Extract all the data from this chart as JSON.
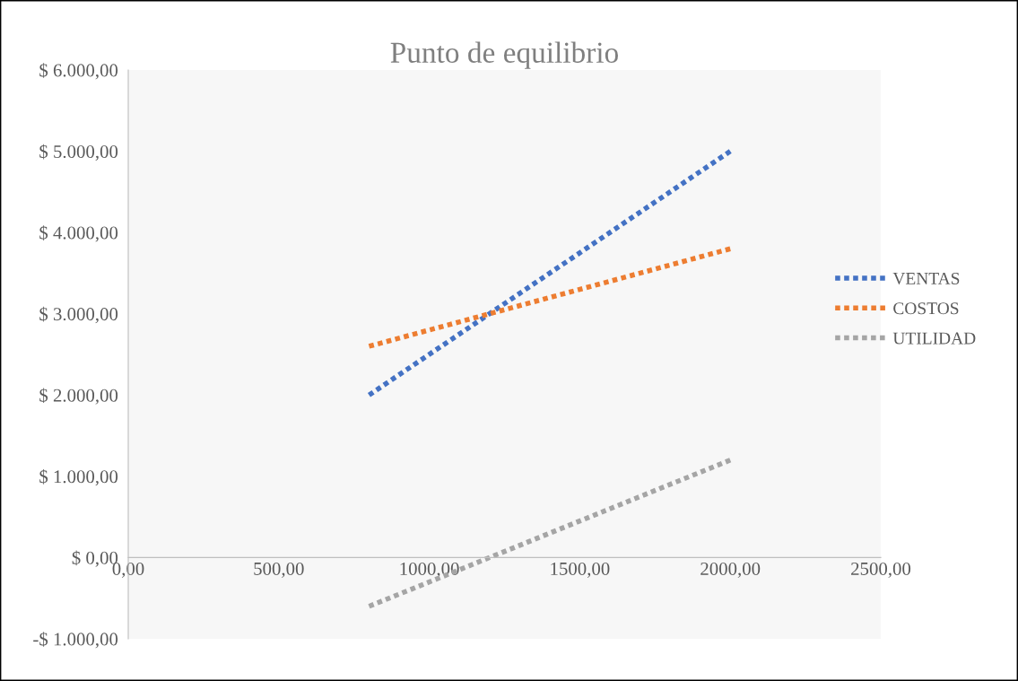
{
  "chart_data": {
    "type": "line",
    "title": "Punto de equilibrio",
    "x": [
      800,
      2000
    ],
    "series": [
      {
        "name": "VENTAS",
        "color": "#4472c4",
        "values": [
          2000,
          5000
        ]
      },
      {
        "name": "COSTOS",
        "color": "#ed7d31",
        "values": [
          2600,
          3800
        ]
      },
      {
        "name": "UTILIDAD",
        "color": "#a5a5a5",
        "values": [
          -600,
          1200
        ]
      }
    ],
    "xlim": [
      0,
      2500
    ],
    "ylim": [
      -1000,
      6000
    ],
    "xticks": [
      {
        "value": 0,
        "label": "0,00"
      },
      {
        "value": 500,
        "label": "500,00"
      },
      {
        "value": 1000,
        "label": "1000,00"
      },
      {
        "value": 1500,
        "label": "1500,00"
      },
      {
        "value": 2000,
        "label": "2000,00"
      },
      {
        "value": 2500,
        "label": "2500,00"
      }
    ],
    "yticks": [
      {
        "value": -1000,
        "label": "-$ 1.000,00"
      },
      {
        "value": 0,
        "label": "$ 0,00"
      },
      {
        "value": 1000,
        "label": "$ 1.000,00"
      },
      {
        "value": 2000,
        "label": "$ 2.000,00"
      },
      {
        "value": 3000,
        "label": "$ 3.000,00"
      },
      {
        "value": 4000,
        "label": "$ 4.000,00"
      },
      {
        "value": 5000,
        "label": "$ 5.000,00"
      },
      {
        "value": 6000,
        "label": "$ 6.000,00"
      }
    ],
    "grid": false,
    "legend": "right",
    "line_style": "dotted",
    "marker": "none"
  }
}
